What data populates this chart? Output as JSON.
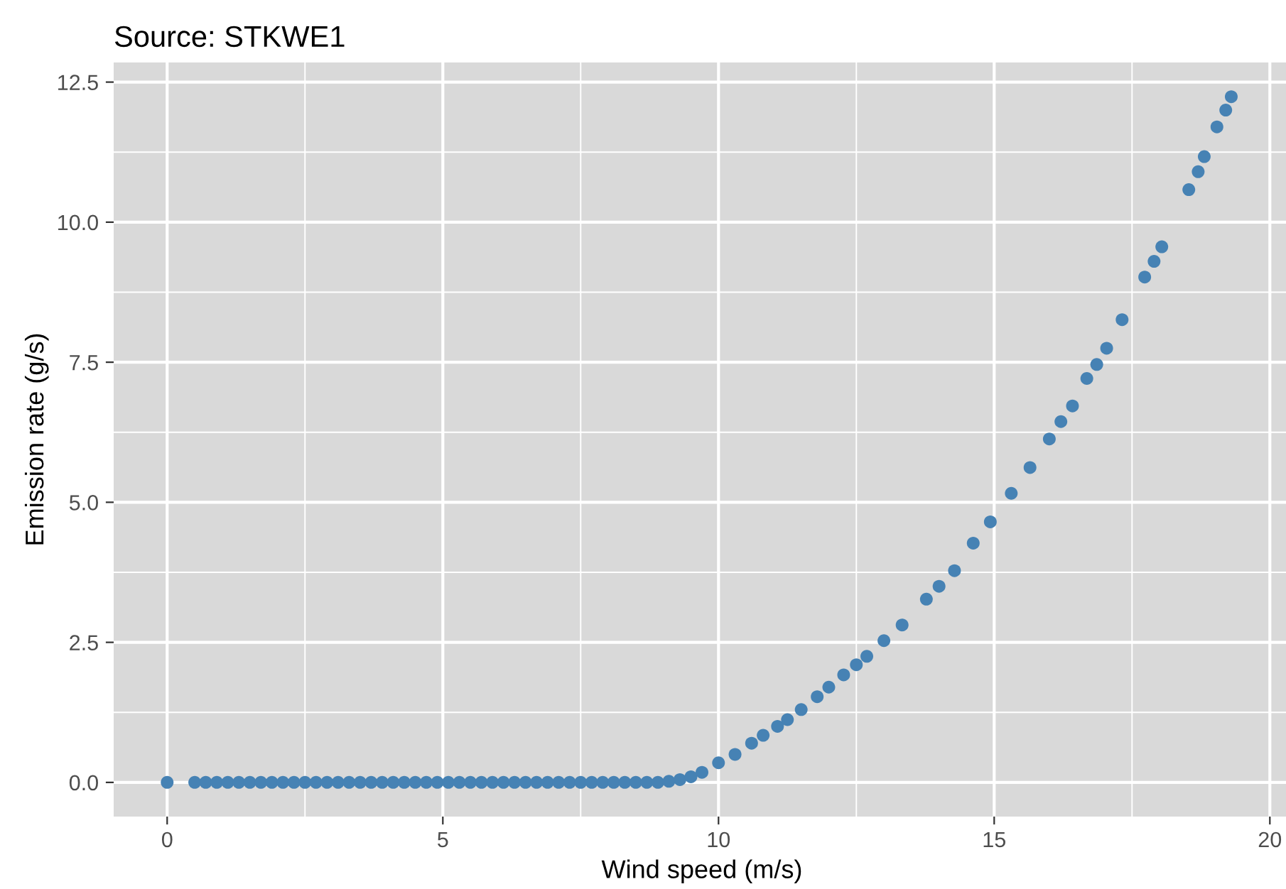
{
  "chart_data": {
    "type": "scatter",
    "title": "Source: STKWE1",
    "xlabel": "Wind speed (m/s)",
    "ylabel": "Emission rate (g/s)",
    "series": [
      {
        "color": "#4682b4",
        "x": [
          0,
          0.5,
          0.7,
          0.9,
          1.1,
          1.3,
          1.5,
          1.7,
          1.9,
          2.1,
          2.3,
          2.5,
          2.7,
          2.9,
          3.1,
          3.3,
          3.5,
          3.7,
          3.9,
          4.1,
          4.3,
          4.5,
          4.7,
          4.9,
          5.1,
          5.3,
          5.5,
          5.7,
          5.9,
          6.1,
          6.3,
          6.5,
          6.7,
          6.9,
          7.1,
          7.3,
          7.5,
          7.7,
          7.9,
          8.1,
          8.3,
          8.5,
          8.7,
          8.9,
          9.1,
          9.3,
          9.5,
          9.7,
          10.0,
          10.3,
          10.6,
          10.81,
          11.07,
          11.25,
          11.5,
          11.79,
          12.0,
          12.27,
          12.5,
          12.69,
          13.0,
          13.33,
          13.77,
          14.0,
          14.28,
          14.62,
          14.93,
          15.31,
          15.65,
          16.0,
          16.21,
          16.42,
          16.68,
          16.86,
          17.04,
          17.32,
          17.73,
          17.9,
          18.04,
          18.53,
          18.7,
          18.81,
          19.04,
          19.2,
          19.3
        ],
        "values": [
          0,
          0,
          0,
          0,
          0,
          0,
          0,
          0,
          0,
          0,
          0,
          0,
          0,
          0,
          0,
          0,
          0,
          0,
          0,
          0,
          0,
          0,
          0,
          0,
          0,
          0,
          0,
          0,
          0,
          0,
          0,
          0,
          0,
          0,
          0,
          0,
          0,
          0,
          0,
          0,
          0,
          0,
          0,
          0,
          0.02,
          0.05,
          0.1,
          0.18,
          0.35,
          0.5,
          0.7,
          0.84,
          1.0,
          1.12,
          1.3,
          1.53,
          1.7,
          1.92,
          2.1,
          2.25,
          2.53,
          2.81,
          3.27,
          3.5,
          3.78,
          4.27,
          4.65,
          5.16,
          5.62,
          6.13,
          6.44,
          6.72,
          7.21,
          7.46,
          7.75,
          8.26,
          9.02,
          9.3,
          9.56,
          10.58,
          10.9,
          11.17,
          11.7,
          12.0,
          12.24
        ]
      }
    ],
    "xlim": [
      -0.97,
      20.37
    ],
    "ylim": [
      -0.61,
      12.85
    ],
    "xticks": [
      0,
      5,
      10,
      15,
      20
    ],
    "yticks": [
      {
        "value": 0,
        "label": "0.0"
      },
      {
        "value": 2.5,
        "label": "2.5"
      },
      {
        "value": 5,
        "label": "5.0"
      },
      {
        "value": 7.5,
        "label": "7.5"
      },
      {
        "value": 10,
        "label": "10.0"
      },
      {
        "value": 12.5,
        "label": "12.5"
      }
    ],
    "grid": true,
    "marker": "circle"
  }
}
